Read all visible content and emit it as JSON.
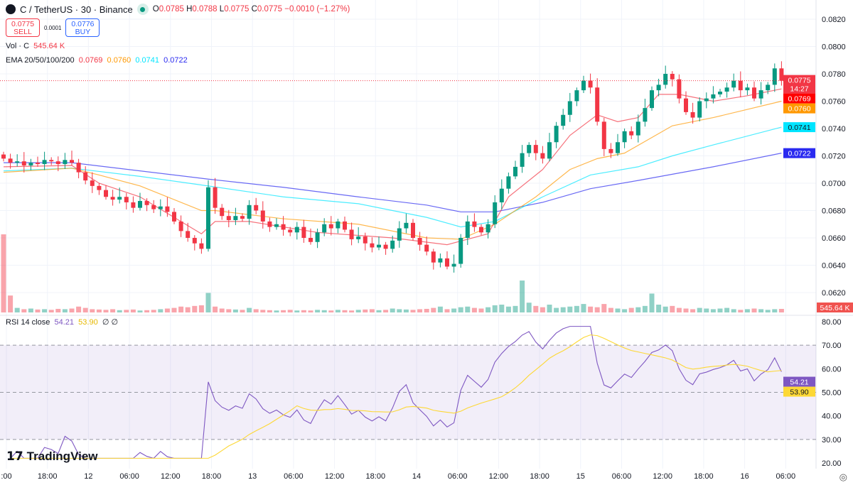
{
  "header": {
    "symbol": "C / TetherUS · 30 · Binance",
    "o_label": "O",
    "o": "0.0785",
    "h_label": "H",
    "h": "0.0788",
    "l_label": "L",
    "l": "0.0775",
    "c_label": "C",
    "c": "0.0775",
    "change": "−0.0010 (−1.27%)"
  },
  "trade": {
    "sell_price": "0.0775",
    "sell_label": "SELL",
    "spread": "0.0001",
    "buy_price": "0.0776",
    "buy_label": "BUY"
  },
  "volume": {
    "label": "Vol · C",
    "value": "545.64 K",
    "badge": "545.64 K"
  },
  "ema": {
    "label": "EMA 20/50/100/200",
    "v20": "0.0769",
    "v50": "0.0760",
    "v100": "0.0741",
    "v200": "0.0722"
  },
  "rsi": {
    "label": "RSI 14 close",
    "value": "54.21",
    "ma": "53.90",
    "extra": "∅ ∅"
  },
  "badges": {
    "price": "0.0775",
    "countdown": "14:27"
  },
  "logo": "TradingView",
  "colors": {
    "up": "#089981",
    "down": "#f23645",
    "ema20": "#f23645",
    "ema50": "#ff9800",
    "ema100": "#00e5ff",
    "ema200": "#2a2af0",
    "rsi": "#7e57c2",
    "rsi_ma": "#fdd835"
  },
  "chart_data": {
    "type": "candlestick",
    "price_ticks": [
      "0.0820",
      "0.0800",
      "0.0780",
      "0.0760",
      "0.0740",
      "0.0720",
      "0.0700",
      "0.0680",
      "0.0660",
      "0.0640",
      "0.0620"
    ],
    "rsi_ticks": [
      "80.00",
      "70.00",
      "60.00",
      "50.00",
      "40.00",
      "30.00",
      "20.00"
    ],
    "time_labels": [
      ":00",
      "18:00",
      "12",
      "06:00",
      "12:00",
      "18:00",
      "13",
      "06:00",
      "12:00",
      "18:00",
      "14",
      "06:00",
      "12:00",
      "18:00",
      "15",
      "06:00",
      "12:00",
      "18:00",
      "16",
      "06:00"
    ],
    "closes": [
      0.0718,
      0.0715,
      0.0716,
      0.0713,
      0.0715,
      0.0714,
      0.0717,
      0.0716,
      0.0714,
      0.0717,
      0.0715,
      0.0708,
      0.0702,
      0.0698,
      0.0695,
      0.069,
      0.0688,
      0.069,
      0.0686,
      0.0682,
      0.0687,
      0.0684,
      0.0681,
      0.0683,
      0.0679,
      0.0672,
      0.0665,
      0.066,
      0.0656,
      0.0652,
      0.0697,
      0.0682,
      0.0676,
      0.0673,
      0.0676,
      0.0674,
      0.0684,
      0.068,
      0.0672,
      0.0668,
      0.067,
      0.0666,
      0.0664,
      0.0668,
      0.066,
      0.0657,
      0.0664,
      0.067,
      0.0667,
      0.0672,
      0.0666,
      0.0659,
      0.0661,
      0.0656,
      0.0653,
      0.0655,
      0.0652,
      0.0658,
      0.0667,
      0.0671,
      0.066,
      0.0655,
      0.065,
      0.0642,
      0.0645,
      0.0639,
      0.0641,
      0.066,
      0.0672,
      0.0668,
      0.0664,
      0.067,
      0.0686,
      0.0696,
      0.0705,
      0.0712,
      0.0722,
      0.0728,
      0.0722,
      0.0718,
      0.073,
      0.0742,
      0.075,
      0.076,
      0.0768,
      0.0775,
      0.077,
      0.0745,
      0.0725,
      0.0722,
      0.073,
      0.0738,
      0.0735,
      0.0745,
      0.0755,
      0.0768,
      0.0772,
      0.078,
      0.0776,
      0.0762,
      0.0752,
      0.0748,
      0.076,
      0.0762,
      0.0765,
      0.0767,
      0.077,
      0.0775,
      0.0768,
      0.077,
      0.0762,
      0.0768,
      0.0772,
      0.0784,
      0.0775
    ],
    "volumes_k": [
      12000,
      2600,
      700,
      500,
      600,
      450,
      500,
      400,
      550,
      500,
      600,
      900,
      700,
      500,
      450,
      400,
      500,
      350,
      400,
      450,
      300,
      350,
      400,
      500,
      600,
      700,
      900,
      800,
      1000,
      1100,
      3000,
      900,
      600,
      500,
      450,
      400,
      700,
      500,
      400,
      350,
      300,
      350,
      400,
      300,
      350,
      300,
      400,
      350,
      300,
      400,
      350,
      300,
      400,
      450,
      500,
      350,
      400,
      600,
      500,
      450,
      400,
      500,
      550,
      700,
      900,
      500,
      600,
      800,
      900,
      700,
      600,
      800,
      1100,
      1200,
      900,
      1000,
      4900,
      1500,
      1000,
      800,
      1200,
      700,
      800,
      900,
      1000,
      1300,
      900,
      800,
      1300,
      700,
      600,
      500,
      700,
      800,
      1000,
      2900,
      1200,
      900,
      1000,
      700,
      600,
      500,
      700,
      600,
      500,
      600,
      700,
      500,
      400,
      500,
      600,
      500,
      400,
      500,
      545.64
    ],
    "ema_lines": {
      "ema20": [
        [
          0,
          0.0712
        ],
        [
          10,
          0.0713
        ],
        [
          14,
          0.07
        ],
        [
          20,
          0.069
        ],
        [
          29,
          0.0663
        ],
        [
          31,
          0.0672
        ],
        [
          36,
          0.0672
        ],
        [
          46,
          0.0664
        ],
        [
          57,
          0.066
        ],
        [
          65,
          0.0655
        ],
        [
          71,
          0.0663
        ],
        [
          74,
          0.069
        ],
        [
          79,
          0.071
        ],
        [
          83,
          0.0735
        ],
        [
          87,
          0.075
        ],
        [
          90,
          0.0745
        ],
        [
          93,
          0.0748
        ],
        [
          96,
          0.0765
        ],
        [
          99,
          0.0765
        ],
        [
          104,
          0.076
        ],
        [
          109,
          0.0764
        ],
        [
          114,
          0.0769
        ]
      ],
      "ema50": [
        [
          0,
          0.0708
        ],
        [
          10,
          0.0711
        ],
        [
          14,
          0.0706
        ],
        [
          20,
          0.0698
        ],
        [
          29,
          0.068
        ],
        [
          31,
          0.068
        ],
        [
          41,
          0.0674
        ],
        [
          52,
          0.067
        ],
        [
          62,
          0.066
        ],
        [
          67,
          0.0659
        ],
        [
          72,
          0.067
        ],
        [
          78,
          0.069
        ],
        [
          83,
          0.071
        ],
        [
          87,
          0.0718
        ],
        [
          91,
          0.0722
        ],
        [
          98,
          0.0742
        ],
        [
          104,
          0.0748
        ],
        [
          109,
          0.0754
        ],
        [
          114,
          0.076
        ]
      ],
      "ema100": [
        [
          0,
          0.0709
        ],
        [
          10,
          0.0711
        ],
        [
          20,
          0.0705
        ],
        [
          30,
          0.0698
        ],
        [
          41,
          0.069
        ],
        [
          52,
          0.0685
        ],
        [
          62,
          0.0675
        ],
        [
          67,
          0.0668
        ],
        [
          72,
          0.0672
        ],
        [
          79,
          0.069
        ],
        [
          86,
          0.0706
        ],
        [
          93,
          0.0712
        ],
        [
          98,
          0.072
        ],
        [
          104,
          0.0728
        ],
        [
          114,
          0.0741
        ]
      ],
      "ema200": [
        [
          0,
          0.0715
        ],
        [
          10,
          0.0715
        ],
        [
          30,
          0.0703
        ],
        [
          41,
          0.0697
        ],
        [
          52,
          0.069
        ],
        [
          62,
          0.0684
        ],
        [
          67,
          0.0679
        ],
        [
          72,
          0.0679
        ],
        [
          79,
          0.0686
        ],
        [
          86,
          0.0696
        ],
        [
          93,
          0.0702
        ],
        [
          104,
          0.0712
        ],
        [
          114,
          0.0722
        ]
      ]
    },
    "price_range": [
      0.061,
      0.0834
    ],
    "rsi_range": [
      20,
      80
    ],
    "rsi_bands": [
      30,
      70
    ]
  }
}
